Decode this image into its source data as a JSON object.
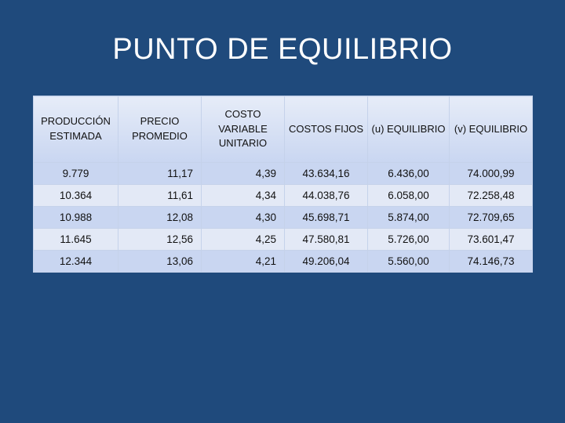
{
  "slide": {
    "title": "PUNTO DE EQUILIBRIO"
  },
  "table": {
    "headers": [
      "PRODUCCIÓN ESTIMADA",
      "PRECIO PROMEDIO",
      "COSTO VARIABLE UNITARIO",
      "COSTOS FIJOS",
      "(u) EQUILIBRIO",
      "(v) EQUILIBRIO"
    ],
    "rows": [
      [
        "9.779",
        "11,17",
        "4,39",
        "43.634,16",
        "6.436,00",
        "74.000,99"
      ],
      [
        "10.364",
        "11,61",
        "4,34",
        "44.038,76",
        "6.058,00",
        "72.258,48"
      ],
      [
        "10.988",
        "12,08",
        "4,30",
        "45.698,71",
        "5.874,00",
        "72.709,65"
      ],
      [
        "11.645",
        "12,56",
        "4,25",
        "47.580,81",
        "5.726,00",
        "73.601,47"
      ],
      [
        "12.344",
        "13,06",
        "4,21",
        "49.206,04",
        "5.560,00",
        "74.146,73"
      ]
    ]
  },
  "colors": {
    "background": "#1f4a7c",
    "header_fill": "#c9d6f1",
    "row_fill_dark": "#c9d6f1",
    "row_fill_light": "#e3e9f6",
    "title_text": "#ffffff"
  }
}
